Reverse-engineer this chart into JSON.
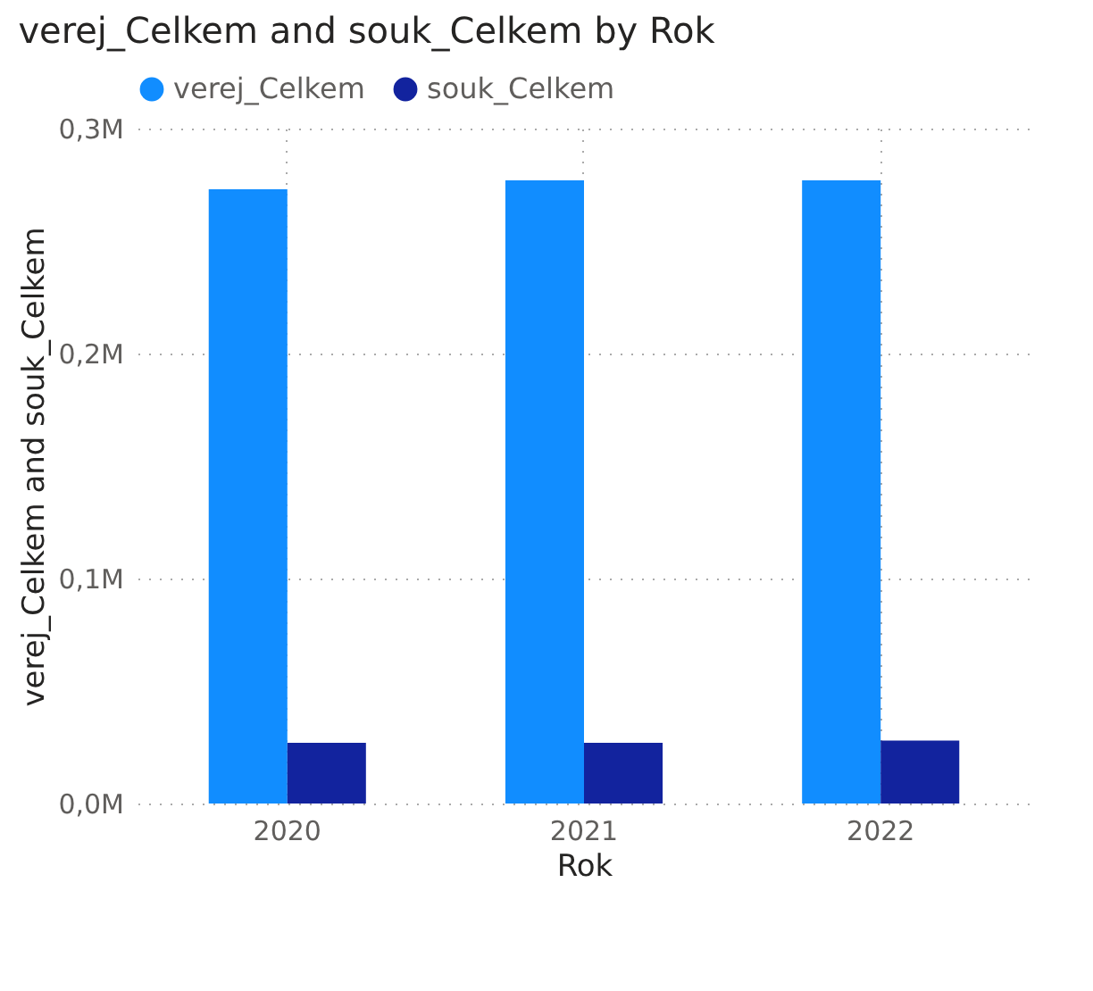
{
  "chart_data": {
    "type": "bar",
    "title": "verej_Celkem and souk_Celkem by Rok",
    "xlabel": "Rok",
    "ylabel": "verej_Celkem and souk_Celkem",
    "categories": [
      "2020",
      "2021",
      "2022"
    ],
    "series": [
      {
        "name": "verej_Celkem",
        "color": "#118dff",
        "values": [
          0.273,
          0.277,
          0.277
        ]
      },
      {
        "name": "souk_Celkem",
        "color": "#12239e",
        "values": [
          0.027,
          0.027,
          0.028
        ]
      }
    ],
    "ylim": [
      0,
      0.3
    ],
    "yticks": [
      {
        "value": 0,
        "label": "0,0M"
      },
      {
        "value": 0.1,
        "label": "0,1M"
      },
      {
        "value": 0.2,
        "label": "0,2M"
      },
      {
        "value": 0.3,
        "label": "0,3M"
      }
    ],
    "grid": true,
    "legend": "top left"
  }
}
